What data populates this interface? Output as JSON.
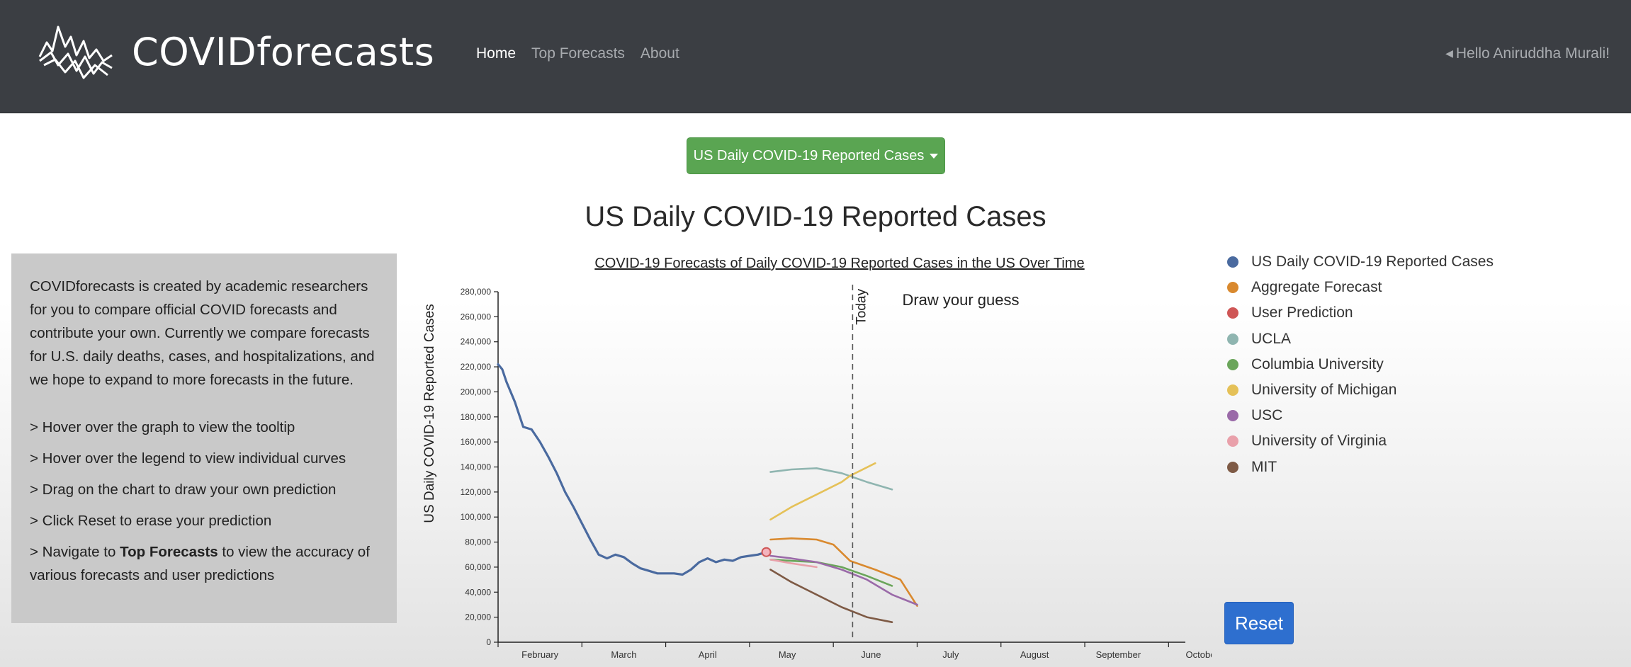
{
  "navbar": {
    "brand": "COVIDforecasts",
    "links": [
      {
        "label": "Home",
        "active": true
      },
      {
        "label": "Top Forecasts",
        "active": false
      },
      {
        "label": "About",
        "active": false
      }
    ],
    "greeting": "Hello Aniruddha Murali!"
  },
  "selector": {
    "label": "US Daily COVID-19 Reported Cases"
  },
  "page_title": "US Daily COVID-19 Reported Cases",
  "info": {
    "intro": "COVIDforecasts is created by academic researchers for you to compare official COVID forecasts and contribute your own. Currently we compare forecasts for U.S. daily deaths, cases, and hospitalizations, and we hope to expand to more forecasts in the future.",
    "tips": [
      "> Hover over the graph to view the tooltip",
      "> Hover over the legend to view individual curves",
      "> Drag on the chart to draw your own prediction",
      "> Click Reset to erase your prediction"
    ],
    "last_tip_prefix": "> Navigate to ",
    "last_tip_bold": "Top Forecasts",
    "last_tip_suffix": " to view the accuracy of various forecasts and user predictions"
  },
  "chart_data": {
    "type": "line",
    "title": "COVID-19 Forecasts of Daily COVID-19 Reported Cases in the US Over Time",
    "ylabel": "US Daily COVID-19 Reported Cases",
    "xlabel": "",
    "annotation": "Draw your guess",
    "today_label": "Today",
    "today_x": 4.53,
    "xlim": [
      0.3,
      8.5
    ],
    "ylim": [
      0,
      280000
    ],
    "x_tick_labels": [
      {
        "x": 0.8,
        "label": "February"
      },
      {
        "x": 1.8,
        "label": "March"
      },
      {
        "x": 2.8,
        "label": "April"
      },
      {
        "x": 3.75,
        "label": "May"
      },
      {
        "x": 4.75,
        "label": "June"
      },
      {
        "x": 5.7,
        "label": "July"
      },
      {
        "x": 6.7,
        "label": "August"
      },
      {
        "x": 7.7,
        "label": "September"
      },
      {
        "x": 8.7,
        "label": "October"
      }
    ],
    "y_ticks": [
      0,
      20000,
      40000,
      60000,
      80000,
      100000,
      120000,
      140000,
      160000,
      180000,
      200000,
      220000,
      240000,
      260000,
      280000
    ],
    "y_tick_labels": [
      "0",
      "20,000",
      "40,000",
      "60,000",
      "80,000",
      "100,000",
      "120,000",
      "140,000",
      "160,000",
      "180,000",
      "200,000",
      "220,000",
      "240,000",
      "260,000",
      "280,000"
    ],
    "x_tick_positions": [
      0.3,
      1.3,
      2.3,
      3.3,
      4.3,
      5.3,
      6.3,
      7.3,
      8.3
    ],
    "series": [
      {
        "name": "US Daily COVID-19 Reported Cases",
        "color": "#4a6a9f",
        "kind": "observed",
        "x": [
          0.3,
          0.35,
          0.4,
          0.5,
          0.6,
          0.7,
          0.8,
          0.9,
          1.0,
          1.1,
          1.2,
          1.3,
          1.4,
          1.5,
          1.6,
          1.7,
          1.8,
          1.9,
          2.0,
          2.1,
          2.2,
          2.3,
          2.4,
          2.5,
          2.6,
          2.7,
          2.8,
          2.9,
          3.0,
          3.1,
          3.2,
          3.3,
          3.4,
          3.5
        ],
        "y": [
          222000,
          218000,
          208000,
          192000,
          172000,
          170000,
          160000,
          148000,
          135000,
          120000,
          108000,
          95000,
          82000,
          70000,
          67000,
          70000,
          68000,
          63000,
          59000,
          57000,
          55000,
          55000,
          55000,
          54000,
          58000,
          64000,
          67000,
          64000,
          66000,
          65000,
          68000,
          69000,
          70000,
          72000
        ]
      },
      {
        "name": "Aggregate Forecast",
        "color": "#d9892e",
        "kind": "forecast",
        "x": [
          3.55,
          3.8,
          4.1,
          4.3,
          4.5,
          4.8,
          5.1,
          5.3
        ],
        "y": [
          82000,
          83000,
          82000,
          78000,
          65000,
          58000,
          50000,
          29000
        ]
      },
      {
        "name": "User Prediction",
        "color": "#cf5656",
        "kind": "forecast",
        "x": [
          3.5,
          3.55
        ],
        "y": [
          72000,
          72000
        ]
      },
      {
        "name": "UCLA",
        "color": "#8fb5b0",
        "kind": "forecast",
        "x": [
          3.55,
          3.8,
          4.1,
          4.4,
          4.7,
          5.0
        ],
        "y": [
          136000,
          138000,
          139000,
          135000,
          128000,
          122000
        ]
      },
      {
        "name": "Columbia University",
        "color": "#6aa55a",
        "kind": "forecast",
        "x": [
          3.55,
          3.8,
          4.1,
          4.4,
          4.7,
          5.0
        ],
        "y": [
          66000,
          65000,
          64000,
          60000,
          53000,
          45000
        ]
      },
      {
        "name": "University of Michigan",
        "color": "#e5c158",
        "kind": "forecast",
        "x": [
          3.55,
          3.8,
          4.1,
          4.4,
          4.5,
          4.8
        ],
        "y": [
          98000,
          108000,
          118000,
          128000,
          133000,
          143000
        ]
      },
      {
        "name": "USC",
        "color": "#9a6aa8",
        "kind": "forecast",
        "x": [
          3.55,
          3.8,
          4.1,
          4.4,
          4.7,
          5.0,
          5.3
        ],
        "y": [
          69000,
          67000,
          64000,
          58000,
          50000,
          38000,
          30000
        ]
      },
      {
        "name": "University of Virginia",
        "color": "#e9a0aa",
        "kind": "forecast",
        "x": [
          3.55,
          3.8,
          4.1
        ],
        "y": [
          66000,
          63000,
          60000
        ]
      },
      {
        "name": "MIT",
        "color": "#7e5a45",
        "kind": "forecast",
        "x": [
          3.55,
          3.8,
          4.1,
          4.4,
          4.7,
          5.0
        ],
        "y": [
          58000,
          48000,
          38000,
          28000,
          20000,
          16000
        ]
      }
    ]
  },
  "legend": [
    {
      "label": "US Daily COVID-19 Reported Cases",
      "color": "#4a6a9f"
    },
    {
      "label": "Aggregate Forecast",
      "color": "#d9892e"
    },
    {
      "label": "User Prediction",
      "color": "#cf5656"
    },
    {
      "label": "UCLA",
      "color": "#8fb5b0"
    },
    {
      "label": "Columbia University",
      "color": "#6aa55a"
    },
    {
      "label": "University of Michigan",
      "color": "#e5c158"
    },
    {
      "label": "USC",
      "color": "#9a6aa8"
    },
    {
      "label": "University of Virginia",
      "color": "#e9a0aa"
    },
    {
      "label": "MIT",
      "color": "#7e5a45"
    }
  ],
  "reset_label": "Reset"
}
